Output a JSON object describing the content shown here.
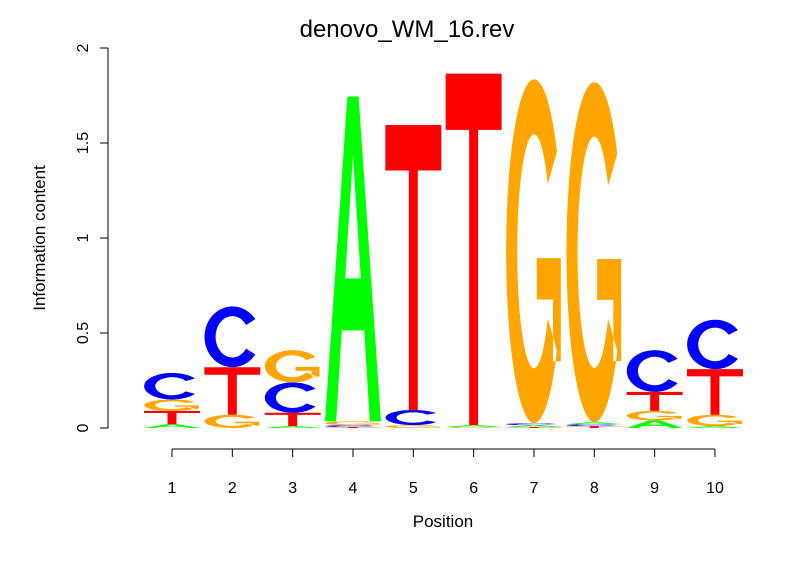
{
  "chart_data": {
    "type": "sequence-logo",
    "title": "denovo_WM_16.rev",
    "xlabel": "Position",
    "ylabel": "Information content",
    "ylim": [
      0,
      2
    ],
    "yticks": [
      0,
      0.5,
      1,
      1.5,
      2
    ],
    "ytick_labels": [
      "0",
      "0.5",
      "1",
      "1.5",
      "2"
    ],
    "positions": [
      "1",
      "2",
      "3",
      "4",
      "5",
      "6",
      "7",
      "8",
      "9",
      "10"
    ],
    "colors": {
      "A": "#00ff00",
      "C": "#0000ff",
      "G": "#ffa500",
      "T": "#ff0000"
    },
    "stacks": [
      [
        {
          "base": "A",
          "bits": 0.02
        },
        {
          "base": "T",
          "bits": 0.07
        },
        {
          "base": "G",
          "bits": 0.06
        },
        {
          "base": "C",
          "bits": 0.14
        }
      ],
      [
        {
          "base": "G",
          "bits": 0.07
        },
        {
          "base": "T",
          "bits": 0.25
        },
        {
          "base": "C",
          "bits": 0.32
        }
      ],
      [
        {
          "base": "A",
          "bits": 0.01
        },
        {
          "base": "T",
          "bits": 0.07
        },
        {
          "base": "C",
          "bits": 0.16
        },
        {
          "base": "G",
          "bits": 0.17
        }
      ],
      [
        {
          "base": "T",
          "bits": 0.005
        },
        {
          "base": "C",
          "bits": 0.01
        },
        {
          "base": "G",
          "bits": 0.02
        },
        {
          "base": "A",
          "bits": 1.71
        }
      ],
      [
        {
          "base": "G",
          "bits": 0.015
        },
        {
          "base": "C",
          "bits": 0.08
        },
        {
          "base": "T",
          "bits": 1.5
        }
      ],
      [
        {
          "base": "G",
          "bits": 0.005
        },
        {
          "base": "A",
          "bits": 0.01
        },
        {
          "base": "T",
          "bits": 1.85
        }
      ],
      [
        {
          "base": "T",
          "bits": 0.005
        },
        {
          "base": "A",
          "bits": 0.01
        },
        {
          "base": "C",
          "bits": 0.01
        },
        {
          "base": "G",
          "bits": 1.81
        }
      ],
      [
        {
          "base": "T",
          "bits": 0.01
        },
        {
          "base": "C",
          "bits": 0.01
        },
        {
          "base": "A",
          "bits": 0.01
        },
        {
          "base": "G",
          "bits": 1.79
        }
      ],
      [
        {
          "base": "A",
          "bits": 0.04
        },
        {
          "base": "G",
          "bits": 0.05
        },
        {
          "base": "T",
          "bits": 0.1
        },
        {
          "base": "C",
          "bits": 0.22
        }
      ],
      [
        {
          "base": "A",
          "bits": 0.01
        },
        {
          "base": "G",
          "bits": 0.06
        },
        {
          "base": "T",
          "bits": 0.24
        },
        {
          "base": "C",
          "bits": 0.26
        }
      ]
    ]
  }
}
